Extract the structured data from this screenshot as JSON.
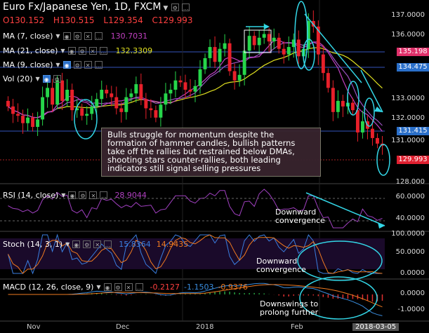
{
  "header": {
    "symbol": "Euro Fx/Japanese Yen, 1D, FXCM"
  },
  "ohlc": {
    "o_label": "O",
    "o": "130.152",
    "h_label": "H",
    "h": "130.515",
    "l_label": "L",
    "l": "129.354",
    "c_label": "C",
    "c": "129.993"
  },
  "indicators": {
    "ma7": {
      "label": "MA (7, close)",
      "value": "130.7031",
      "color": "#c040c0"
    },
    "ma21": {
      "label": "MA (21, close)",
      "value": "132.3309",
      "color": "#e0e020"
    },
    "ma9": {
      "label": "MA (9, close)"
    },
    "vol": {
      "label": "Vol (20)"
    },
    "rsi": {
      "label": "RSI (14, close)",
      "value": "28.9044",
      "color": "#b040c0"
    },
    "stoch": {
      "label": "Stoch (14, 3, 1)",
      "k": "15.8364",
      "d": "14.9435",
      "k_color": "#3a7ee0",
      "d_color": "#f07a20"
    },
    "macd": {
      "label": "MACD (12, 26, close, 9)",
      "hist": "-0.2127",
      "macd": "-1.1503",
      "signal": "-0.9376",
      "hist_color": "#ff4040",
      "macd_color": "#3a8ee0",
      "signal_color": "#f07a20"
    }
  },
  "price_axis": [
    "137.0000",
    "136.0000",
    "133.0000",
    "132.0000",
    "131.0000",
    "128.000"
  ],
  "price_tags": {
    "ma_red": "135.198",
    "ma_blue": "134.475",
    "level": "131.415",
    "last": "129.993"
  },
  "rsi_axis": [
    "60.0000",
    "40.0000"
  ],
  "stoch_axis": [
    "100.0000",
    "50.0000",
    "0.0000"
  ],
  "macd_axis": [
    "0.0000",
    "-1.0000"
  ],
  "time_axis": [
    "Nov",
    "Dec",
    "2018",
    "Feb",
    "2018-03-05"
  ],
  "annotations": {
    "main_box": "Bulls struggle for momentum despite the formation of hammer candles, bullish patterns take off the rallies but restrained below DMAs, shooting stars counter-rallies, both leading indicators still signal selling pressures",
    "rsi_note": "Downward convergence",
    "stoch_note": "Downward convergence",
    "macd_note": "Downswings to prolong further"
  },
  "colors": {
    "up": "#26d64a",
    "down": "#e8202a",
    "annot": "#33d6e6",
    "ma9": "#9a50c0"
  },
  "chart_data": {
    "type": "candlestick",
    "series": "EUR/JPY daily",
    "closes": [
      132.1,
      131.7,
      131.6,
      131.2,
      131.5,
      131.0,
      131.4,
      132.6,
      133.1,
      132.2,
      133.5,
      132.4,
      133.0,
      131.9,
      132.0,
      131.6,
      131.7,
      132.1,
      132.5,
      133.0,
      132.8,
      132.6,
      132.0,
      131.8,
      132.6,
      132.8,
      133.3,
      132.5,
      132.0,
      131.9,
      131.5,
      132.2,
      132.8,
      133.0,
      133.5,
      133.4,
      133.0,
      132.9,
      133.2,
      134.1,
      134.7,
      135.3,
      134.5,
      135.2,
      135.5,
      134.0,
      133.5,
      133.8,
      135.1,
      135.9,
      135.4,
      135.8,
      136.0,
      135.6,
      135.8,
      135.2,
      134.9,
      135.3,
      135.7,
      134.8,
      135.2,
      136.7,
      136.4,
      134.9,
      133.9,
      133.1,
      131.8,
      132.4,
      132.1,
      132.3,
      131.9,
      130.7,
      131.3,
      130.9,
      130.4,
      130.1,
      129.99
    ],
    "ohlc_last": {
      "open": 130.152,
      "high": 130.515,
      "low": 129.354,
      "close": 129.993
    },
    "ma7_last": 130.7031,
    "ma21_last": 132.3309,
    "rsi_last": 28.9044,
    "stoch_k": 15.8364,
    "stoch_d": 14.9435,
    "macd": -1.1503,
    "macd_signal": -0.9376,
    "macd_hist": -0.2127
  }
}
